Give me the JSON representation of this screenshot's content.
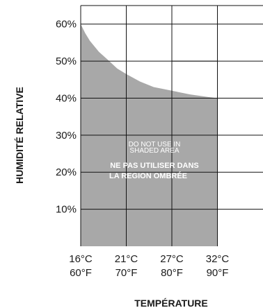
{
  "chart_data": {
    "type": "area",
    "x_celsius": [
      "16°C",
      "21°C",
      "27°C",
      "32°C"
    ],
    "x_fahrenheit": [
      "60°F",
      "70°F",
      "80°F",
      "90°F"
    ],
    "y_ticks": [
      "10%",
      "20%",
      "30%",
      "40%",
      "50%",
      "60%"
    ],
    "ylabel": "HUMIDITÉ RELATIVE",
    "xlabel": "TEMPÉRATURE",
    "ylim": [
      0,
      65
    ],
    "xlim_f": [
      60,
      100
    ],
    "boundary_curve": {
      "x_f": [
        60,
        61,
        62,
        64,
        66,
        68,
        70,
        73,
        76,
        80,
        84,
        88,
        90
      ],
      "y_pct": [
        60,
        57.5,
        55.5,
        52.5,
        50.3,
        48,
        46.5,
        44.5,
        43,
        42,
        41,
        40.3,
        40
      ]
    },
    "shaded_x_max_f": 90,
    "annotations": {
      "en_line1": "DO NOT USE IN",
      "en_line2": "SHADED AREA",
      "fr_line1": "NE PAS UTILISER DANS",
      "fr_line2": "LA REGION OMBRÉE"
    },
    "colors": {
      "shade": "#a8a8a8",
      "grid": "#111111"
    }
  }
}
